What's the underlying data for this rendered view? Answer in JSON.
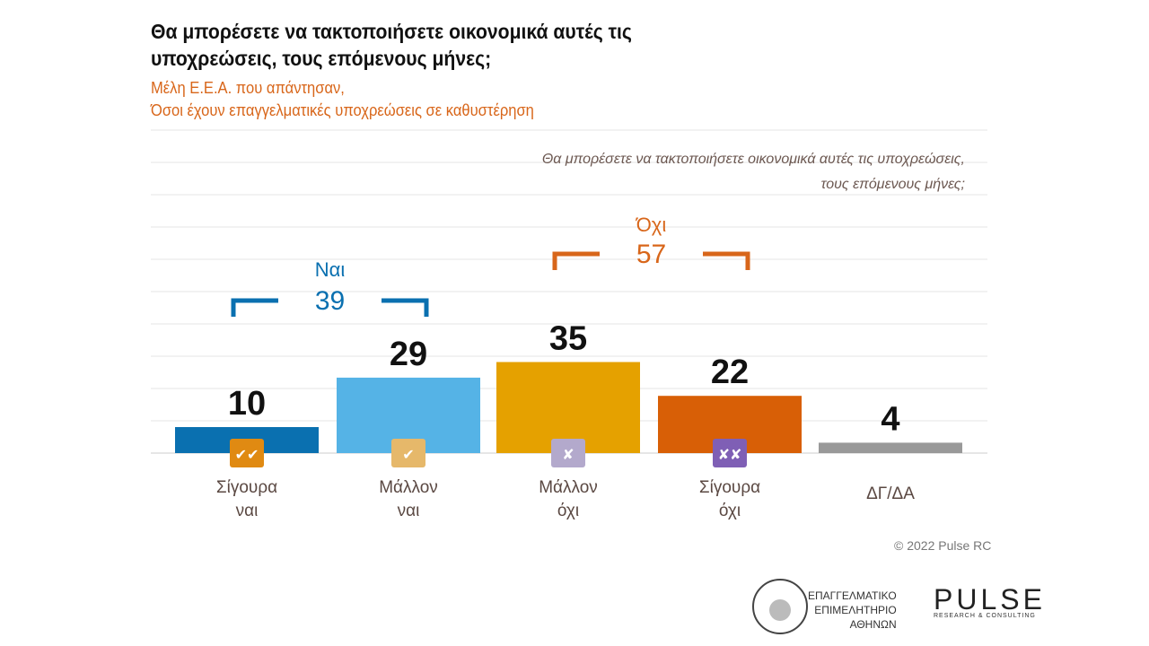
{
  "title": "Θα μπορέσετε να τακτοποιήσετε οικονομικά αυτές τις υποχρεώσεις, τους επόμενους μήνες;",
  "subtitle_line1": "Μέλη Ε.Ε.Α. που απάντησαν,",
  "subtitle_line2": "Όσοι έχουν επαγγελματικές υποχρεώσεις σε καθυστέρηση",
  "question_line1": "Θα μπορέσετε να τακτοποιήσετε οικονομικά αυτές τις υποχρεώσεις,",
  "question_line2": "τους επόμενους μήνες;",
  "copyright": "© 2022 Pulse RC",
  "logos": {
    "eea": [
      "ΕΠΑΓΓΕΛΜΑΤΙΚΟ",
      "ΕΠΙΜΕΛΗΤΗΡΙΟ",
      "ΑΘΗΝΩΝ"
    ],
    "pulse": "PULSE",
    "pulse_tag": "RESEARCH & CONSULTING"
  },
  "chart_data": {
    "type": "bar",
    "categories": [
      [
        "Σίγουρα",
        "ναι"
      ],
      [
        "Μάλλον",
        "ναι"
      ],
      [
        "Μάλλον",
        "όχι"
      ],
      [
        "Σίγουρα",
        "όχι"
      ],
      [
        "ΔΓ/ΔΑ"
      ]
    ],
    "values": [
      10,
      29,
      35,
      22,
      4
    ],
    "colors": [
      "#0a70b0",
      "#55b3e6",
      "#e5a100",
      "#d85f06",
      "#999999"
    ],
    "icons": [
      "double-check-icon",
      "check-icon",
      "cross-icon",
      "double-cross-icon",
      null
    ],
    "icon_colors": [
      "#e08a12",
      "#e6b86a",
      "#b3a9cc",
      "#7f5fb5",
      null
    ],
    "ylim": [
      0,
      125
    ],
    "grid": true,
    "groups": [
      {
        "label": "Ναι",
        "value": 39,
        "from": 0,
        "to": 1,
        "color": "#0a70b0"
      },
      {
        "label": "Όχι",
        "value": 57,
        "from": 2,
        "to": 3,
        "color": "#d8661a"
      }
    ]
  }
}
